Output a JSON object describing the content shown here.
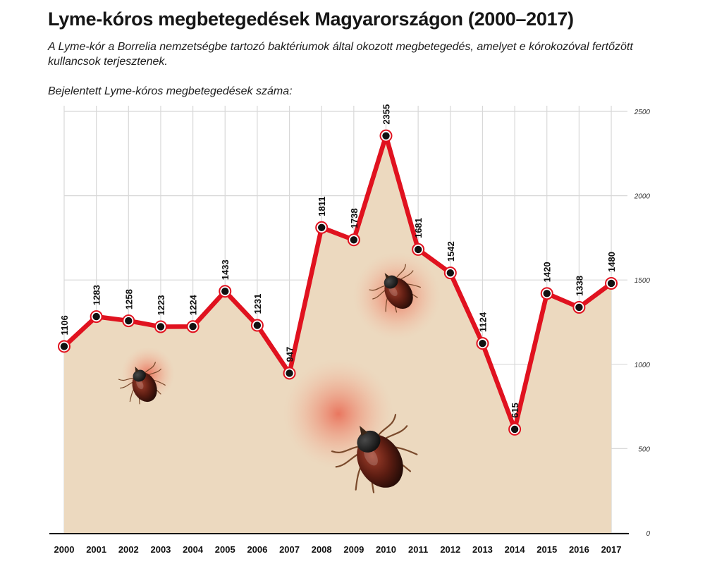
{
  "title": "Lyme-kóros megbetegedések Magyarországon (2000–2017)",
  "subtitle": "A Lyme-kór a Borrelia nemzetségbe tartozó baktériumok által okozott megbetegedés, amelyet e kórokozóval fertőzött kullancsok terjesztenek.",
  "axis_caption": "Bejelentett Lyme-kóros megbetegedések száma:",
  "colors": {
    "line": "#e0121f",
    "area": "#ecd9bf",
    "grid": "#d8d8d8",
    "marker": "#111111"
  },
  "chart_data": {
    "type": "line",
    "title": "Lyme-kóros megbetegedések Magyarországon (2000–2017)",
    "ylabel": "Bejelentett Lyme-kóros megbetegedések száma:",
    "xlabel": "",
    "categories": [
      "2000",
      "2001",
      "2002",
      "2003",
      "2004",
      "2005",
      "2006",
      "2007",
      "2008",
      "2009",
      "2010",
      "2011",
      "2012",
      "2013",
      "2014",
      "2015",
      "2016",
      "2017"
    ],
    "values": [
      1106,
      1283,
      1258,
      1223,
      1224,
      1433,
      1231,
      947,
      1811,
      1738,
      2355,
      1681,
      1542,
      1124,
      615,
      1420,
      1338,
      1480
    ],
    "ylim": [
      0,
      2500
    ],
    "yticks": [
      0,
      500,
      1000,
      1500,
      2000,
      2500
    ],
    "y_axis_side": "right",
    "grid": true,
    "area_fill": true,
    "point_labels": true,
    "decorations": [
      "tick-illustration",
      "tick-illustration",
      "tick-illustration"
    ]
  }
}
